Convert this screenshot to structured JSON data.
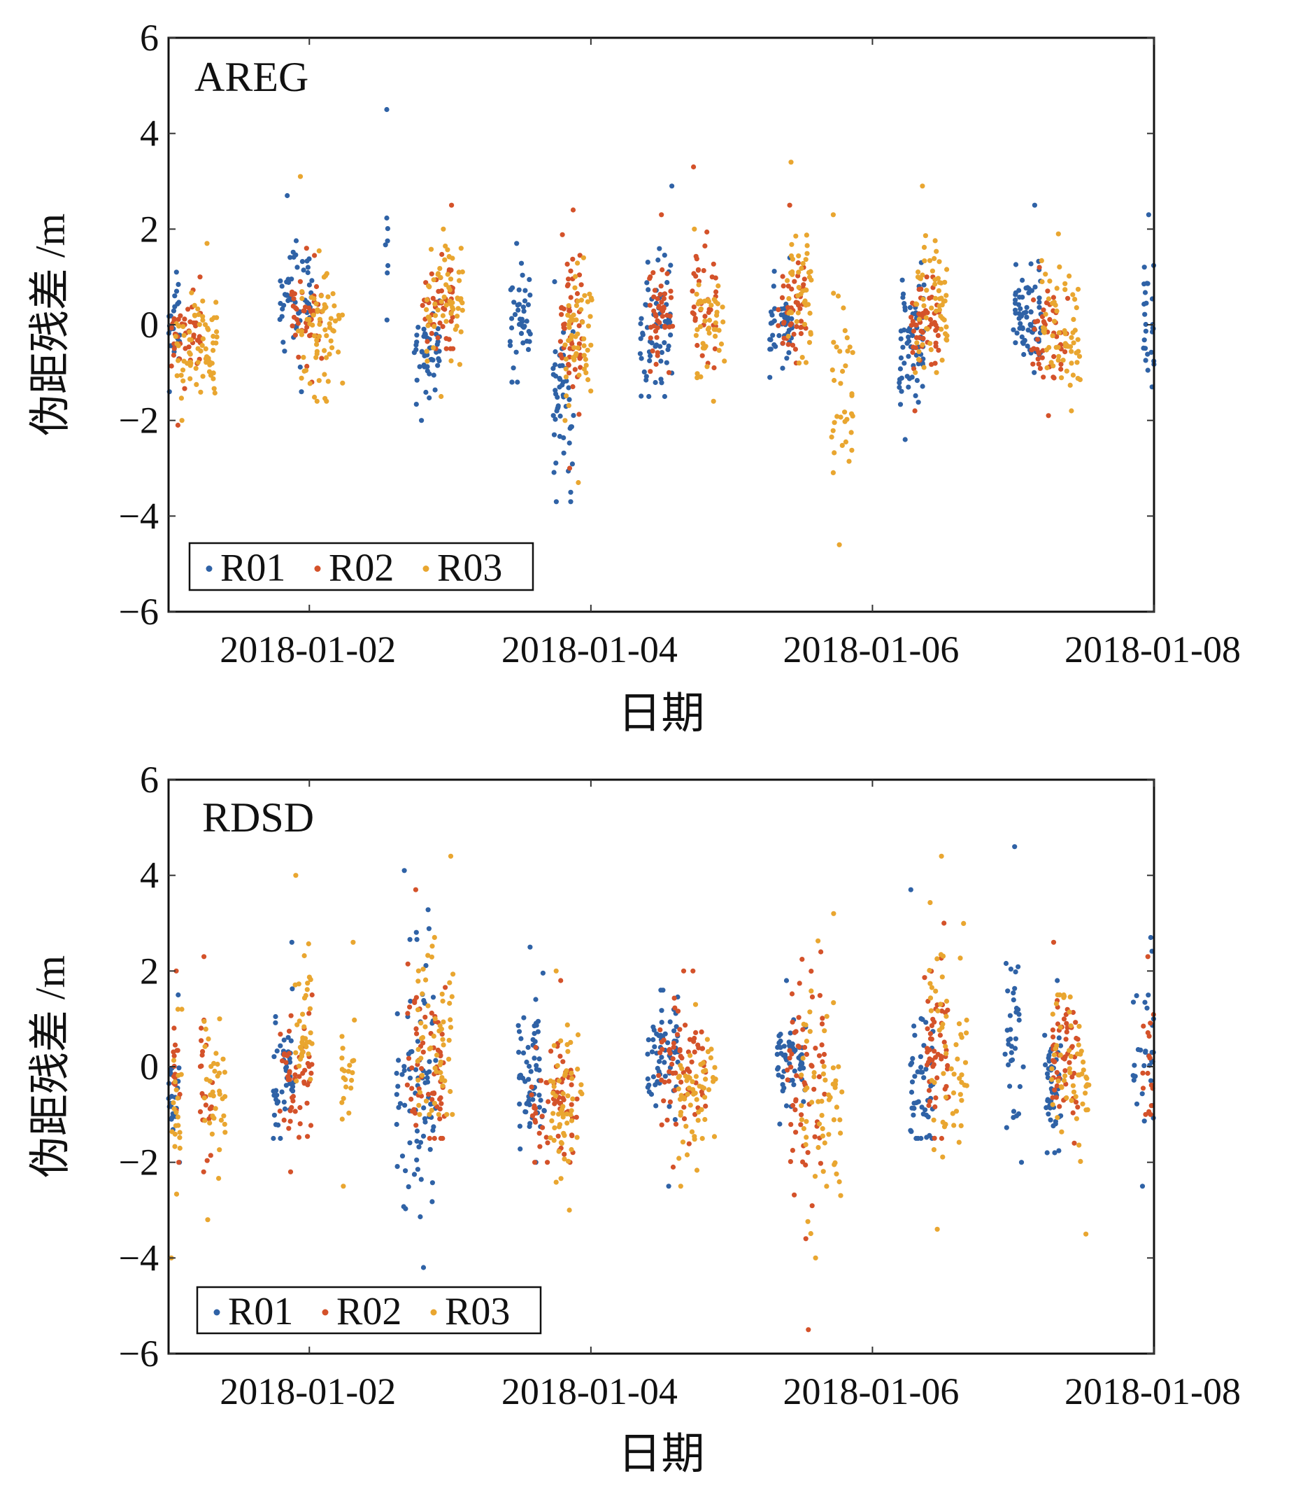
{
  "chart_data": [
    {
      "type": "scatter",
      "title": "AREG",
      "xlabel": "日期",
      "ylabel": "伪距残差 /m",
      "xlim": [
        "2018-01-01",
        "2018-01-08"
      ],
      "xticks": [
        {
          "day": 1,
          "label": "2018-01-02"
        },
        {
          "day": 3,
          "label": "2018-01-04"
        },
        {
          "day": 5,
          "label": "2018-01-06"
        },
        {
          "day": 7,
          "label": "2018-01-08"
        }
      ],
      "ylim": [
        -6,
        6
      ],
      "yticks": [
        {
          "value": -6,
          "label": "−6"
        },
        {
          "value": -4,
          "label": "−4"
        },
        {
          "value": -2,
          "label": "−2"
        },
        {
          "value": 0,
          "label": "0"
        },
        {
          "value": 2,
          "label": "2"
        },
        {
          "value": 4,
          "label": "4"
        },
        {
          "value": 6,
          "label": "6"
        }
      ],
      "legend_placement": "bottom-left",
      "grid": false,
      "cluster_format": [
        "day_start",
        "day_end",
        "mean",
        "min",
        "max",
        "count"
      ],
      "series": [
        {
          "name": "R01",
          "color": "#2f62a6",
          "clusters": [
            [
              0,
              0.08,
              0,
              -1.4,
              1.1,
              25
            ],
            [
              0.79,
              1.02,
              0.6,
              -1.4,
              2.7,
              50
            ],
            [
              1.54,
              1.56,
              1.8,
              0.1,
              4.5,
              6
            ],
            [
              1.74,
              1.93,
              -0.6,
              -2,
              0.5,
              45
            ],
            [
              2.42,
              2.57,
              0,
              -1.2,
              1.7,
              40
            ],
            [
              2.73,
              2.88,
              -1.5,
              -3.7,
              0.9,
              50
            ],
            [
              3.35,
              3.58,
              -0.2,
              -1.5,
              2.9,
              60
            ],
            [
              4.27,
              4.43,
              0,
              -1.1,
              1.4,
              50
            ],
            [
              5.19,
              5.37,
              -0.3,
              -2.4,
              1.3,
              60
            ],
            [
              6.0,
              6.2,
              0.2,
              -1,
              2.5,
              70
            ],
            [
              6.92,
              7.0,
              0,
              -1.3,
              2.3,
              25
            ]
          ]
        },
        {
          "name": "R02",
          "color": "#d4522a",
          "clusters": [
            [
              0.01,
              0.25,
              -0.2,
              -2.1,
              1,
              45
            ],
            [
              0.86,
              1.09,
              0.3,
              -1.2,
              1.6,
              45
            ],
            [
              1.8,
              2.02,
              0.5,
              -0.5,
              2.5,
              50
            ],
            [
              2.78,
              2.94,
              0,
              -3,
              2.4,
              55
            ],
            [
              3.41,
              3.58,
              0.3,
              -1,
              2.3,
              45
            ],
            [
              3.72,
              3.89,
              0.5,
              -0.9,
              3.3,
              35
            ],
            [
              4.33,
              4.53,
              0.3,
              -0.8,
              2.5,
              45
            ],
            [
              5.27,
              5.48,
              0,
              -1.8,
              1,
              55
            ],
            [
              6.13,
              6.39,
              -0.1,
              -1.9,
              1.2,
              50
            ]
          ]
        },
        {
          "name": "R03",
          "color": "#e9a630",
          "clusters": [
            [
              0.05,
              0.36,
              -0.4,
              -2,
              1.7,
              70
            ],
            [
              0.92,
              1.24,
              -0.1,
              -1.6,
              3.1,
              65
            ],
            [
              1.83,
              2.09,
              0.5,
              -1.5,
              2,
              60
            ],
            [
              2.81,
              3.01,
              -0.2,
              -3.3,
              1.4,
              55
            ],
            [
              3.72,
              3.95,
              0.1,
              -1.6,
              2,
              45
            ],
            [
              4.39,
              4.57,
              0.6,
              -0.8,
              3.4,
              45
            ],
            [
              4.71,
              4.86,
              -1.2,
              -4.6,
              2.3,
              35
            ],
            [
              5.3,
              5.54,
              0.5,
              -1,
              2.9,
              60
            ],
            [
              6.2,
              6.48,
              -0.2,
              -1.8,
              1.9,
              60
            ]
          ]
        }
      ]
    },
    {
      "type": "scatter",
      "title": "RDSD",
      "xlabel": "日期",
      "ylabel": "伪距残差 /m",
      "xlim": [
        "2018-01-01",
        "2018-01-08"
      ],
      "xticks": [
        {
          "day": 1,
          "label": "2018-01-02"
        },
        {
          "day": 3,
          "label": "2018-01-04"
        },
        {
          "day": 5,
          "label": "2018-01-06"
        },
        {
          "day": 7,
          "label": "2018-01-08"
        }
      ],
      "ylim": [
        -6,
        6
      ],
      "yticks": [
        {
          "value": -6,
          "label": "−6"
        },
        {
          "value": -4,
          "label": "−4"
        },
        {
          "value": -2,
          "label": "−2"
        },
        {
          "value": 0,
          "label": "0"
        },
        {
          "value": 2,
          "label": "2"
        },
        {
          "value": 4,
          "label": "4"
        },
        {
          "value": 6,
          "label": "6"
        }
      ],
      "legend_placement": "bottom-left",
      "grid": false,
      "cluster_format": [
        "day_start",
        "day_end",
        "mean",
        "min",
        "max",
        "count"
      ],
      "series": [
        {
          "name": "R01",
          "color": "#2f62a6",
          "clusters": [
            [
              0,
              0.08,
              -0.5,
              -2,
              1.5,
              20
            ],
            [
              0.74,
              0.89,
              0,
              -1.5,
              2.6,
              45
            ],
            [
              1.62,
              1.9,
              -0.5,
              -4.2,
              4.1,
              80
            ],
            [
              2.47,
              2.67,
              -0.3,
              -2,
              2.5,
              60
            ],
            [
              3.4,
              3.62,
              0.2,
              -2.5,
              1.6,
              60
            ],
            [
              4.32,
              4.53,
              0.1,
              -1.2,
              1.8,
              55
            ],
            [
              5.27,
              5.43,
              -0.2,
              -1.5,
              3.7,
              45
            ],
            [
              5.94,
              6.08,
              0.5,
              -2,
              4.6,
              35
            ],
            [
              6.21,
              6.34,
              -0.3,
              -1.8,
              1.8,
              45
            ],
            [
              6.85,
              7.0,
              0.5,
              -2.5,
              2.7,
              30
            ]
          ]
        },
        {
          "name": "R02",
          "color": "#d4522a",
          "clusters": [
            [
              0.03,
              0.08,
              0,
              -2,
              2,
              15
            ],
            [
              0.22,
              0.32,
              -0.5,
              -2.2,
              2.3,
              25
            ],
            [
              0.79,
              1.02,
              -0.3,
              -2.2,
              1.5,
              50
            ],
            [
              1.67,
              1.97,
              -0.2,
              -1.5,
              3.7,
              65
            ],
            [
              2.57,
              2.91,
              -0.8,
              -2,
              1.8,
              65
            ],
            [
              3.48,
              3.82,
              0,
              -2.1,
              2,
              70
            ],
            [
              4.39,
              4.66,
              -0.2,
              -5.5,
              2.4,
              60
            ],
            [
              5.37,
              5.54,
              0.2,
              -1.5,
              3,
              50
            ],
            [
              6.27,
              6.46,
              0.2,
              -1.6,
              2.6,
              55
            ],
            [
              6.92,
              7.0,
              0.2,
              -1,
              2.3,
              15
            ]
          ]
        },
        {
          "name": "R03",
          "color": "#e9a630",
          "clusters": [
            [
              0.01,
              0.1,
              -0.8,
              -4,
              1.2,
              20
            ],
            [
              0.25,
              0.42,
              -0.5,
              -3.2,
              1,
              35
            ],
            [
              0.89,
              1.02,
              1,
              -0.3,
              4,
              35
            ],
            [
              1.23,
              1.33,
              0,
              -2.5,
              2.6,
              20
            ],
            [
              1.77,
              2.02,
              0.5,
              -1,
              4.4,
              60
            ],
            [
              2.71,
              2.94,
              -0.9,
              -3,
              2,
              55
            ],
            [
              3.62,
              3.89,
              -0.5,
              -2.5,
              1.3,
              60
            ],
            [
              4.49,
              4.79,
              -0.7,
              -4,
              3.2,
              60
            ],
            [
              5.4,
              5.67,
              0.3,
              -3.4,
              4.4,
              55
            ],
            [
              6.27,
              6.54,
              0,
              -3.5,
              1.5,
              55
            ]
          ]
        }
      ]
    }
  ]
}
